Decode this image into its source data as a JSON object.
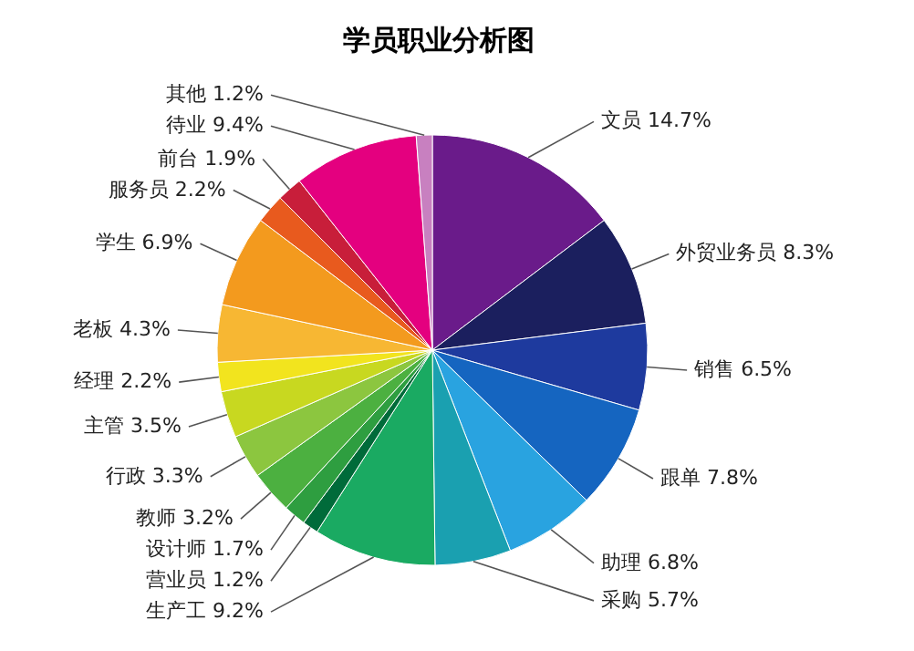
{
  "chart_data": {
    "type": "pie",
    "title": "学员职业分析图",
    "categories": [
      "文员",
      "外贸业务员",
      "销售",
      "跟单",
      "助理",
      "采购",
      "生产工",
      "营业员",
      "设计师",
      "教师",
      "行政",
      "主管",
      "经理",
      "老板",
      "学生",
      "服务员",
      "前台",
      "待业",
      "其他"
    ],
    "values": [
      14.7,
      8.3,
      6.5,
      7.8,
      6.8,
      5.7,
      9.2,
      1.2,
      1.7,
      3.2,
      3.3,
      3.5,
      2.2,
      4.3,
      6.9,
      2.2,
      1.9,
      9.4,
      1.2
    ],
    "value_labels": [
      "14.7%",
      "8.3%",
      "6.5%",
      "7.8%",
      "6.8%",
      "5.7%",
      "9.2%",
      "1.2%",
      "1.7%",
      "3.2%",
      "3.3%",
      "3.5%",
      "2.2%",
      "4.3%",
      "6.9%",
      "2.2%",
      "1.9%",
      "9.4%",
      "1.2%"
    ],
    "colors": [
      "#6a1b8a",
      "#1b1f5e",
      "#1e3a9e",
      "#1565c0",
      "#29a3e0",
      "#1aa0b0",
      "#1aaa62",
      "#006b3a",
      "#2e9e40",
      "#4cb040",
      "#8cc63f",
      "#c8d820",
      "#f2e41e",
      "#f7b733",
      "#f39a1e",
      "#e85a1e",
      "#c81e3a",
      "#e4007f",
      "#c880c0"
    ],
    "legend": false
  }
}
